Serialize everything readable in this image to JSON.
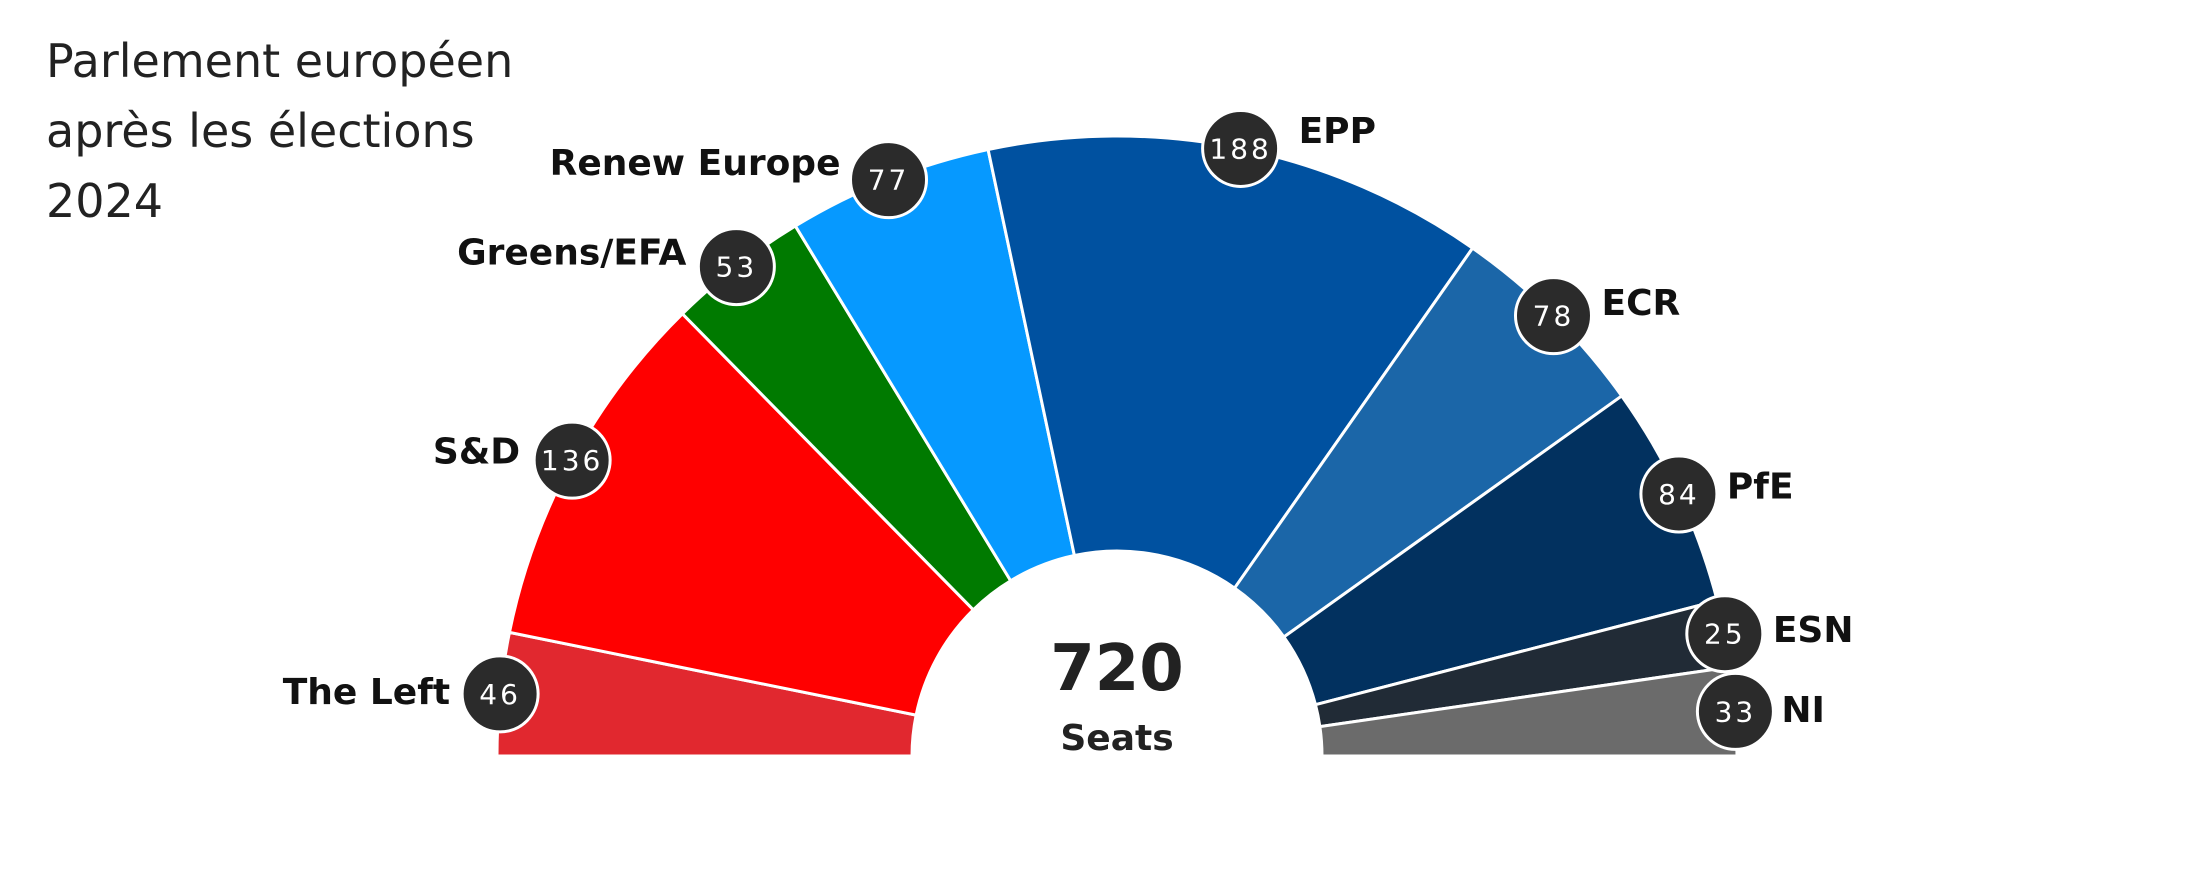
{
  "chart_data": {
    "type": "pie",
    "variant": "half-donut parliament chart",
    "title": "Parlement européen\naprès les élections\n2024",
    "total": 720,
    "total_label": "Seats",
    "legend": "labels beside segments",
    "series": [
      {
        "name": "The Left",
        "value": 46,
        "color": "#E1282F"
      },
      {
        "name": "S&D",
        "value": 136,
        "color": "#FF0000"
      },
      {
        "name": "Greens/EFA",
        "value": 53,
        "color": "#007A00"
      },
      {
        "name": "Renew Europe",
        "value": 77,
        "color": "#0699FF"
      },
      {
        "name": "EPP",
        "value": 188,
        "color": "#0051A0"
      },
      {
        "name": "ECR",
        "value": 78,
        "color": "#1B66A8"
      },
      {
        "name": "PfE",
        "value": 84,
        "color": "#02315F"
      },
      {
        "name": "ESN",
        "value": 25,
        "color": "#212B36"
      },
      {
        "name": "NI",
        "value": 33,
        "color": "#6B6B6B"
      }
    ]
  }
}
